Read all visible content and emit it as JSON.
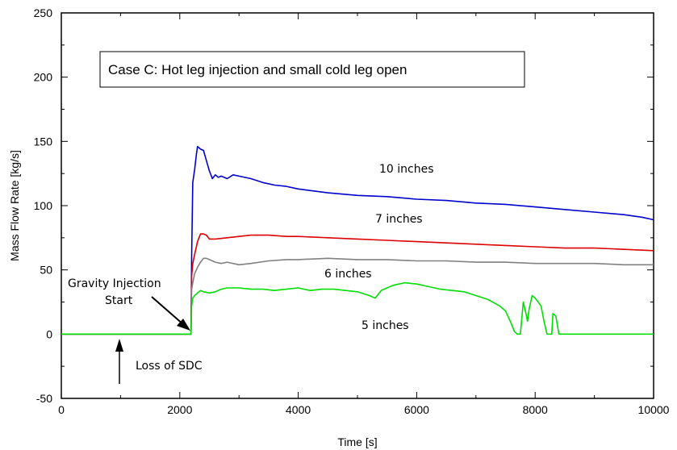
{
  "chart_data": {
    "type": "line",
    "title": "",
    "xlabel": "Time [s]",
    "ylabel": "Mass Flow Rate [kg/s]",
    "xlim": [
      0,
      10000
    ],
    "ylim": [
      -50,
      250
    ],
    "x_ticks": [
      "0",
      "2000",
      "4000",
      "6000",
      "8000",
      "10000"
    ],
    "y_ticks": [
      "-50",
      "0",
      "50",
      "100",
      "150",
      "200",
      "250"
    ],
    "grid": false,
    "case_box_text": "Case C: Hot leg injection and small cold leg open",
    "annotations": {
      "gravity_line1": "Gravity Injection",
      "gravity_line2": "Start",
      "loss_of_sdc": "Loss of SDC"
    },
    "series": [
      {
        "name": "10 inches",
        "color": "#0000cc",
        "x": [
          0,
          2190,
          2200,
          2220,
          2250,
          2280,
          2300,
          2350,
          2400,
          2450,
          2500,
          2550,
          2600,
          2650,
          2700,
          2800,
          2900,
          3000,
          3200,
          3400,
          3600,
          3800,
          4000,
          4500,
          5000,
          5500,
          6000,
          6500,
          7000,
          7500,
          8000,
          8500,
          9000,
          9500,
          9800,
          10000
        ],
        "y": [
          0,
          0,
          60,
          118,
          128,
          140,
          146,
          144,
          143,
          135,
          127,
          121,
          124,
          122,
          123,
          121,
          124,
          123,
          121,
          118,
          116,
          115,
          113,
          110,
          108,
          107,
          105,
          104,
          102,
          101,
          99,
          97,
          95,
          93,
          91,
          89
        ]
      },
      {
        "name": "7 inches",
        "color": "#dd0000",
        "x": [
          0,
          2190,
          2200,
          2220,
          2250,
          2300,
          2350,
          2400,
          2450,
          2500,
          2600,
          2800,
          3000,
          3200,
          3500,
          3800,
          4000,
          4500,
          5000,
          5500,
          6000,
          6500,
          7000,
          7500,
          8000,
          8500,
          9000,
          9500,
          10000
        ],
        "y": [
          0,
          0,
          45,
          55,
          62,
          72,
          78,
          78,
          77,
          74,
          74,
          75,
          76,
          77,
          77,
          76,
          76,
          75,
          74,
          73,
          72,
          71,
          70,
          69,
          68,
          67,
          67,
          66,
          65
        ]
      },
      {
        "name": "6 inches",
        "color": "#808080",
        "x": [
          0,
          2190,
          2200,
          2220,
          2250,
          2300,
          2350,
          2400,
          2450,
          2500,
          2550,
          2600,
          2700,
          2800,
          3000,
          3200,
          3500,
          3800,
          4000,
          4500,
          5000,
          5500,
          6000,
          6500,
          7000,
          7500,
          8000,
          8500,
          9000,
          9500,
          10000
        ],
        "y": [
          0,
          0,
          35,
          40,
          47,
          52,
          56,
          59,
          59,
          58,
          57,
          56,
          55,
          56,
          54,
          55,
          57,
          58,
          58,
          59,
          58,
          58,
          57,
          57,
          56,
          56,
          55,
          55,
          55,
          54,
          54
        ]
      },
      {
        "name": "5 inches",
        "color": "#00dd00",
        "x": [
          0,
          2190,
          2200,
          2220,
          2250,
          2300,
          2350,
          2400,
          2500,
          2600,
          2700,
          2800,
          3000,
          3200,
          3400,
          3600,
          3800,
          4000,
          4200,
          4400,
          4600,
          4800,
          5000,
          5200,
          5300,
          5400,
          5500,
          5600,
          5800,
          6000,
          6200,
          6400,
          6600,
          6800,
          7000,
          7200,
          7400,
          7500,
          7600,
          7650,
          7700,
          7720,
          7750,
          7800,
          7850,
          7870,
          7900,
          7950,
          8000,
          8100,
          8150,
          8200,
          8250,
          8280,
          8300,
          8350,
          8400,
          8450,
          8500,
          9000,
          10000
        ],
        "y": [
          0,
          0,
          22,
          28,
          30,
          32,
          34,
          33,
          32,
          33,
          35,
          36,
          36,
          35,
          35,
          34,
          35,
          36,
          34,
          35,
          35,
          34,
          33,
          30,
          28,
          34,
          36,
          38,
          40,
          39,
          37,
          35,
          34,
          33,
          30,
          27,
          22,
          18,
          8,
          2,
          0,
          0,
          0,
          25,
          15,
          10,
          20,
          30,
          28,
          22,
          10,
          0,
          0,
          0,
          16,
          14,
          0,
          0,
          0,
          0,
          0
        ]
      }
    ],
    "series_labels": [
      "10 inches",
      "7 inches",
      "6 inches",
      "5 inches"
    ]
  }
}
